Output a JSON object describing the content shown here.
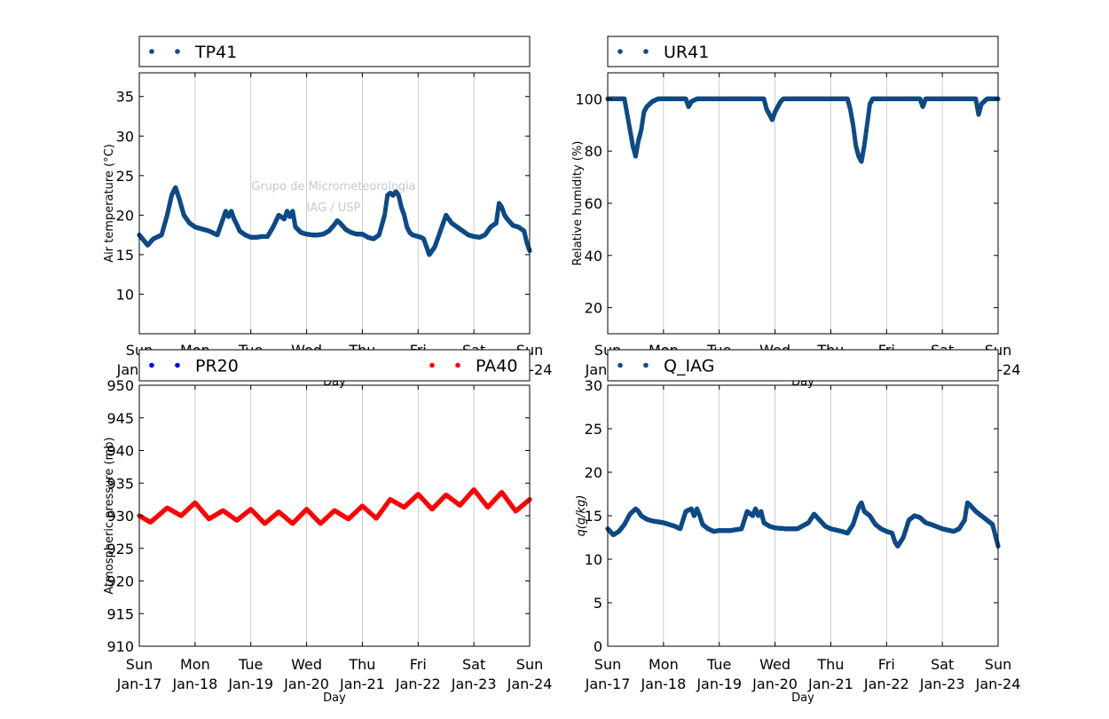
{
  "x_tick_labels": [
    {
      "day": "Sun",
      "date": "Jan-17"
    },
    {
      "day": "Mon",
      "date": "Jan-18"
    },
    {
      "day": "Tue",
      "date": "Jan-19"
    },
    {
      "day": "Wed",
      "date": "Jan-20"
    },
    {
      "day": "Thu",
      "date": "Jan-21"
    },
    {
      "day": "Fri",
      "date": "Jan-22"
    },
    {
      "day": "Sat",
      "date": "Jan-23"
    },
    {
      "day": "Sun",
      "date": "Jan-24"
    }
  ],
  "watermark": {
    "line1": "Grupo de Micrometeorologia",
    "line2": "IAG / USP"
  },
  "chart_data": [
    {
      "type": "scatter",
      "xlabel": "Day",
      "ylabel": "Air temperature (°C)",
      "xlim": [
        "Jan-17",
        "Jan-24"
      ],
      "ylim": [
        5,
        38
      ],
      "yticks": [
        10,
        15,
        20,
        25,
        30,
        35
      ],
      "grid": "vertical",
      "legend_position": "top",
      "series": [
        {
          "name": "TP41",
          "color": "#0d4a87",
          "x_days_since_jan17": [
            0,
            0.15,
            0.25,
            0.4,
            0.5,
            0.58,
            0.65,
            0.72,
            0.8,
            0.9,
            1.0,
            1.1,
            1.25,
            1.4,
            1.5,
            1.55,
            1.6,
            1.65,
            1.7,
            1.75,
            1.8,
            1.9,
            2.0,
            2.1,
            2.2,
            2.3,
            2.4,
            2.5,
            2.6,
            2.65,
            2.7,
            2.75,
            2.8,
            2.9,
            3.0,
            3.1,
            3.2,
            3.3,
            3.4,
            3.5,
            3.55,
            3.6,
            3.7,
            3.8,
            3.9,
            4.0,
            4.1,
            4.2,
            4.3,
            4.4,
            4.45,
            4.5,
            4.55,
            4.6,
            4.65,
            4.7,
            4.75,
            4.8,
            4.85,
            4.9,
            5.0,
            5.05,
            5.1,
            5.15,
            5.2,
            5.3,
            5.4,
            5.45,
            5.5,
            5.6,
            5.7,
            5.8,
            5.9,
            6.0,
            6.1,
            6.2,
            6.3,
            6.4,
            6.45,
            6.5,
            6.55,
            6.6,
            6.7,
            6.8,
            6.9,
            6.95,
            7.0
          ],
          "y": [
            17.5,
            16.2,
            17.0,
            17.5,
            20.0,
            22.5,
            23.5,
            22.0,
            20.0,
            19.0,
            18.5,
            18.3,
            18.0,
            17.5,
            19.5,
            20.5,
            19.8,
            20.5,
            19.5,
            18.8,
            18.0,
            17.5,
            17.2,
            17.2,
            17.3,
            17.3,
            18.5,
            20.0,
            19.5,
            20.5,
            19.8,
            20.5,
            18.5,
            17.8,
            17.6,
            17.5,
            17.5,
            17.6,
            18.0,
            18.8,
            19.3,
            19.0,
            18.2,
            17.8,
            17.6,
            17.6,
            17.2,
            17.0,
            17.5,
            20.0,
            22.5,
            22.8,
            22.5,
            23.0,
            22.5,
            21.0,
            20.0,
            18.5,
            17.8,
            17.5,
            17.3,
            17.2,
            17.0,
            16.0,
            15.0,
            16.0,
            18.0,
            19.0,
            20.0,
            19.0,
            18.5,
            18.0,
            17.5,
            17.3,
            17.2,
            17.5,
            18.5,
            19.0,
            21.5,
            21.0,
            20.0,
            19.5,
            18.7,
            18.5,
            18.0,
            16.5,
            15.5
          ]
        }
      ]
    },
    {
      "type": "scatter",
      "xlabel": "Day",
      "ylabel": "Relative humidity (%)",
      "xlim": [
        "Jan-17",
        "Jan-24"
      ],
      "ylim": [
        10,
        110
      ],
      "yticks": [
        20,
        40,
        60,
        80,
        100
      ],
      "grid": "vertical",
      "legend_position": "top",
      "series": [
        {
          "name": "UR41",
          "color": "#0d4a87",
          "x_days_since_jan17": [
            0,
            0.3,
            0.35,
            0.4,
            0.45,
            0.5,
            0.55,
            0.6,
            0.65,
            0.7,
            0.8,
            0.9,
            1.0,
            1.2,
            1.4,
            1.45,
            1.5,
            1.6,
            1.7,
            2.0,
            2.5,
            2.8,
            2.85,
            2.9,
            2.95,
            3.0,
            3.05,
            3.1,
            3.15,
            3.3,
            3.6,
            4.0,
            4.3,
            4.35,
            4.4,
            4.45,
            4.5,
            4.55,
            4.6,
            4.65,
            4.7,
            4.75,
            4.8,
            5.0,
            5.5,
            5.6,
            5.65,
            5.7,
            6.0,
            6.5,
            6.6,
            6.65,
            6.7,
            6.8,
            7.0
          ],
          "y": [
            100,
            100,
            94,
            88,
            82,
            78,
            84,
            88,
            95,
            97,
            99,
            100,
            100,
            100,
            100,
            97,
            99,
            100,
            100,
            100,
            100,
            100,
            96,
            94,
            92,
            95,
            97,
            99,
            100,
            100,
            100,
            100,
            100,
            96,
            90,
            82,
            78,
            76,
            82,
            90,
            98,
            100,
            100,
            100,
            100,
            100,
            97,
            100,
            100,
            100,
            100,
            94,
            98,
            100,
            100
          ]
        }
      ]
    },
    {
      "type": "scatter",
      "xlabel": "Day",
      "ylabel": "Atmospheric pressure (mb)",
      "xlim": [
        "Jan-17",
        "Jan-24"
      ],
      "ylim": [
        910,
        950
      ],
      "yticks": [
        910,
        915,
        920,
        925,
        930,
        935,
        940,
        945,
        950
      ],
      "grid": "vertical",
      "legend_position": "top",
      "series": [
        {
          "name": "PR20",
          "color": "#0000ff",
          "x_days_since_jan17": [],
          "y": []
        },
        {
          "name": "PA40",
          "color": "#ff0000",
          "x_days_since_jan17": [
            0,
            0.2,
            0.5,
            0.75,
            1.0,
            1.25,
            1.5,
            1.75,
            2.0,
            2.25,
            2.5,
            2.75,
            3.0,
            3.25,
            3.5,
            3.75,
            4.0,
            4.25,
            4.5,
            4.75,
            5.0,
            5.25,
            5.5,
            5.75,
            6.0,
            6.25,
            6.5,
            6.75,
            7.0
          ],
          "y": [
            930.0,
            929.0,
            931.2,
            930.0,
            932.0,
            929.5,
            930.8,
            929.3,
            931.0,
            928.8,
            930.6,
            928.8,
            931.0,
            928.8,
            930.8,
            929.5,
            931.5,
            929.6,
            932.5,
            931.3,
            933.3,
            931.0,
            933.2,
            931.6,
            934.0,
            931.3,
            933.6,
            930.7,
            932.5
          ]
        }
      ]
    },
    {
      "type": "scatter",
      "xlabel": "Day",
      "ylabel": "q(g/kg)",
      "xlim": [
        "Jan-17",
        "Jan-24"
      ],
      "ylim": [
        0,
        30
      ],
      "yticks": [
        0,
        5,
        10,
        15,
        20,
        25,
        30
      ],
      "grid": "vertical",
      "legend_position": "top",
      "series": [
        {
          "name": "Q_IAG",
          "color": "#0d4a87",
          "x_days_since_jan17": [
            0,
            0.1,
            0.2,
            0.3,
            0.4,
            0.5,
            0.55,
            0.6,
            0.7,
            0.8,
            1.0,
            1.2,
            1.3,
            1.4,
            1.5,
            1.55,
            1.6,
            1.65,
            1.7,
            1.8,
            1.9,
            2.0,
            2.2,
            2.4,
            2.5,
            2.6,
            2.65,
            2.7,
            2.75,
            2.8,
            2.9,
            3.0,
            3.2,
            3.4,
            3.6,
            3.7,
            3.8,
            3.9,
            4.0,
            4.2,
            4.3,
            4.4,
            4.5,
            4.55,
            4.6,
            4.7,
            4.8,
            4.9,
            5.0,
            5.1,
            5.15,
            5.2,
            5.3,
            5.4,
            5.5,
            5.6,
            5.7,
            5.8,
            6.0,
            6.2,
            6.3,
            6.4,
            6.45,
            6.5,
            6.6,
            6.7,
            6.8,
            6.9,
            7.0
          ],
          "y": [
            13.5,
            12.8,
            13.2,
            14.0,
            15.2,
            15.8,
            15.5,
            15.0,
            14.6,
            14.4,
            14.2,
            13.8,
            13.5,
            15.5,
            15.8,
            15.0,
            15.8,
            15.0,
            14.0,
            13.5,
            13.2,
            13.3,
            13.3,
            13.5,
            15.5,
            15.0,
            15.8,
            15.0,
            15.5,
            14.2,
            13.8,
            13.6,
            13.5,
            13.5,
            14.2,
            15.2,
            14.5,
            13.8,
            13.5,
            13.2,
            13.0,
            14.0,
            16.0,
            16.5,
            15.5,
            15.0,
            14.0,
            13.5,
            13.2,
            13.0,
            12.0,
            11.5,
            12.5,
            14.5,
            15.0,
            14.8,
            14.2,
            14.0,
            13.5,
            13.2,
            13.5,
            14.5,
            16.5,
            16.2,
            15.5,
            15.0,
            14.5,
            14.0,
            11.5
          ]
        }
      ]
    }
  ]
}
